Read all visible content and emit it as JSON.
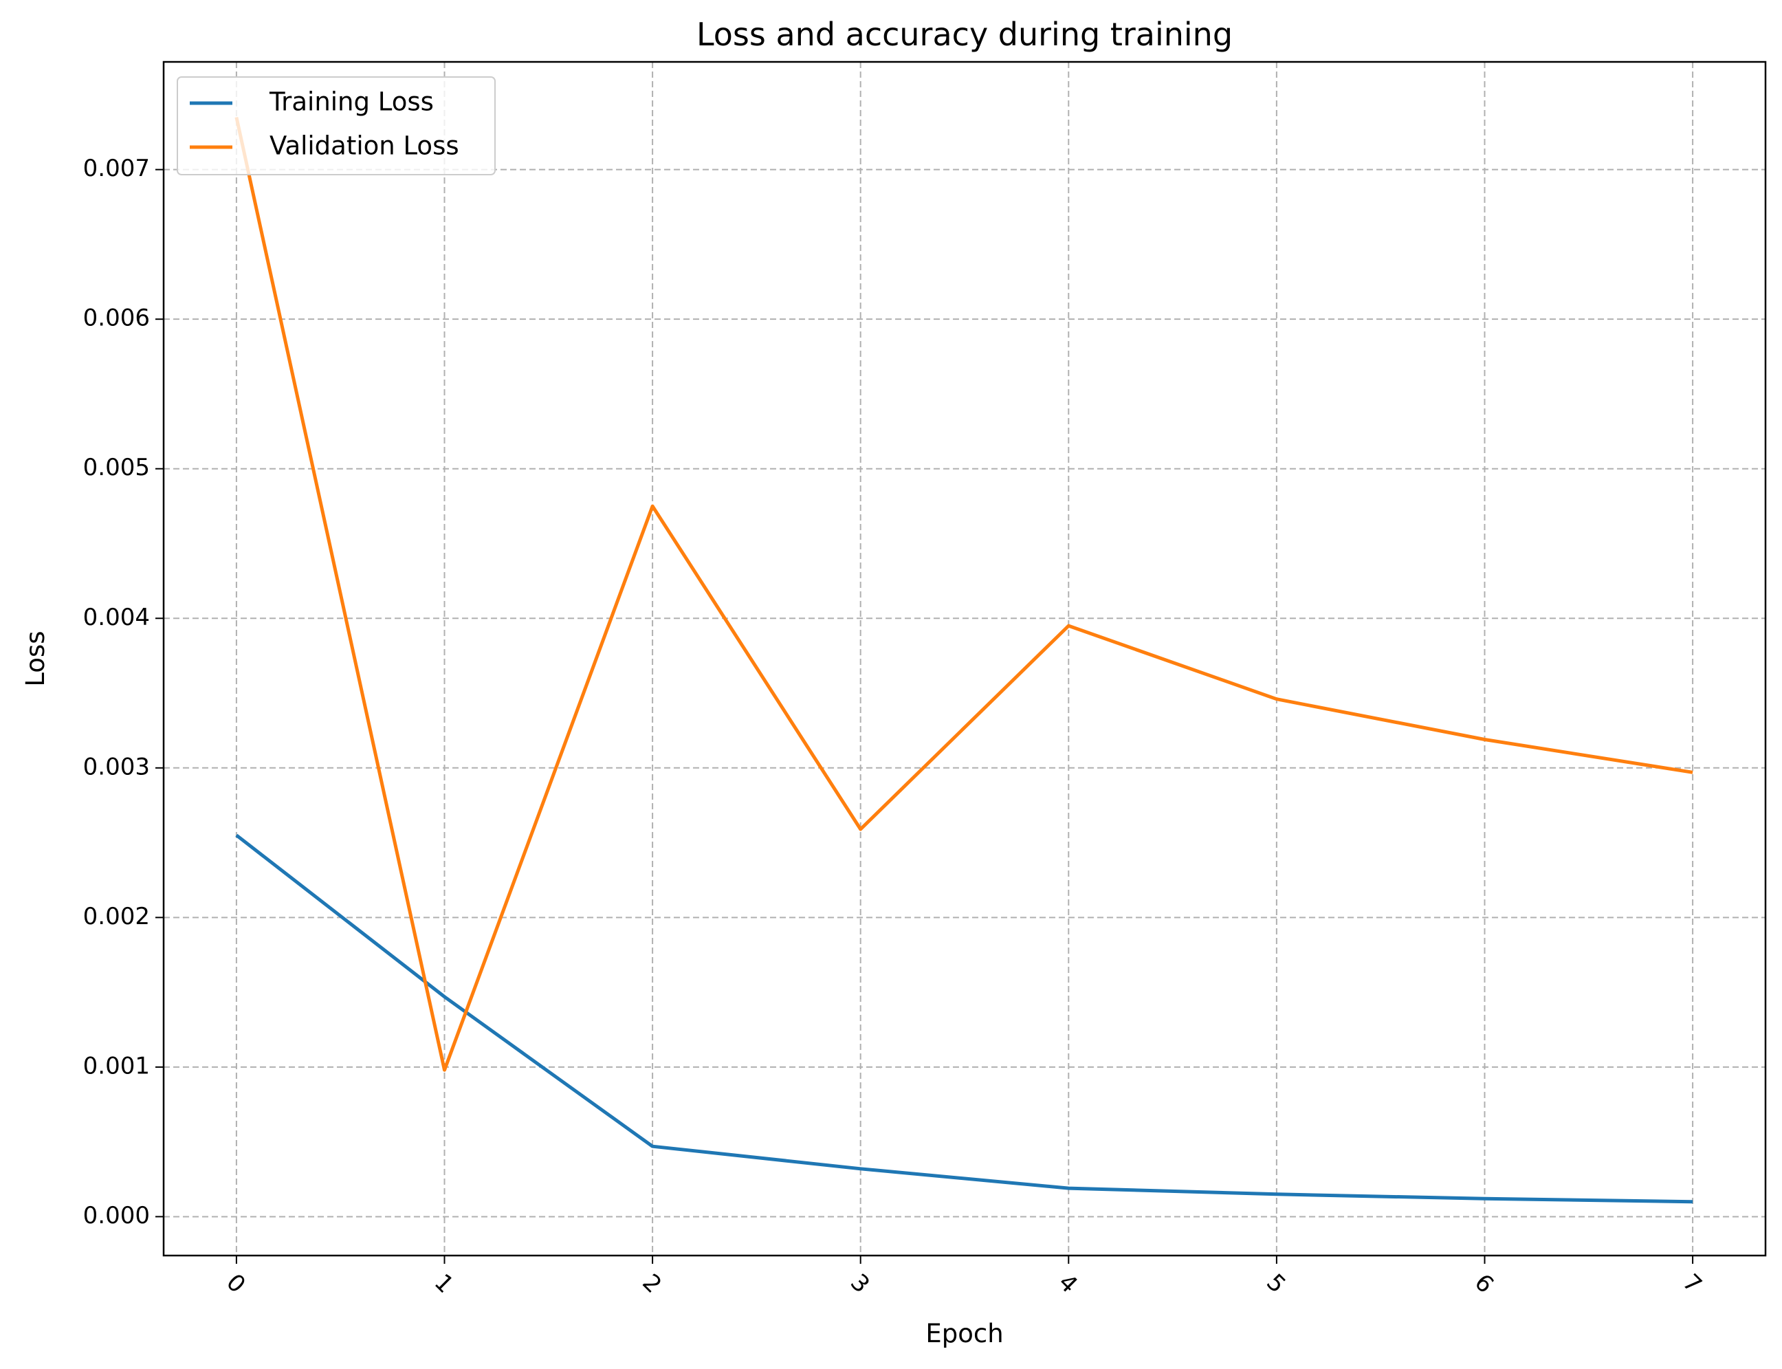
{
  "chart_data": {
    "type": "line",
    "title": "Loss and accuracy during training",
    "xlabel": "Epoch",
    "ylabel": "Loss",
    "x": [
      0,
      1,
      2,
      3,
      4,
      5,
      6,
      7
    ],
    "xlim": [
      -0.35,
      7.35
    ],
    "ylim": [
      -0.00026,
      0.00772
    ],
    "xticks": [
      0,
      1,
      2,
      3,
      4,
      5,
      6,
      7
    ],
    "yticks": [
      0.0,
      0.001,
      0.002,
      0.003,
      0.004,
      0.005,
      0.006,
      0.007
    ],
    "ytick_labels": [
      "0.000",
      "0.001",
      "0.002",
      "0.003",
      "0.004",
      "0.005",
      "0.006",
      "0.007"
    ],
    "xtick_rotation": 45,
    "grid": true,
    "legend_position": "top-left",
    "series": [
      {
        "name": "Training Loss",
        "color": "#1f77b4",
        "values": [
          0.00255,
          0.00147,
          0.00047,
          0.00032,
          0.00019,
          0.00015,
          0.00012,
          0.0001
        ]
      },
      {
        "name": "Validation Loss",
        "color": "#ff7f0e",
        "values": [
          0.00735,
          0.00098,
          0.00475,
          0.00259,
          0.00395,
          0.00346,
          0.00319,
          0.00297
        ]
      }
    ]
  }
}
